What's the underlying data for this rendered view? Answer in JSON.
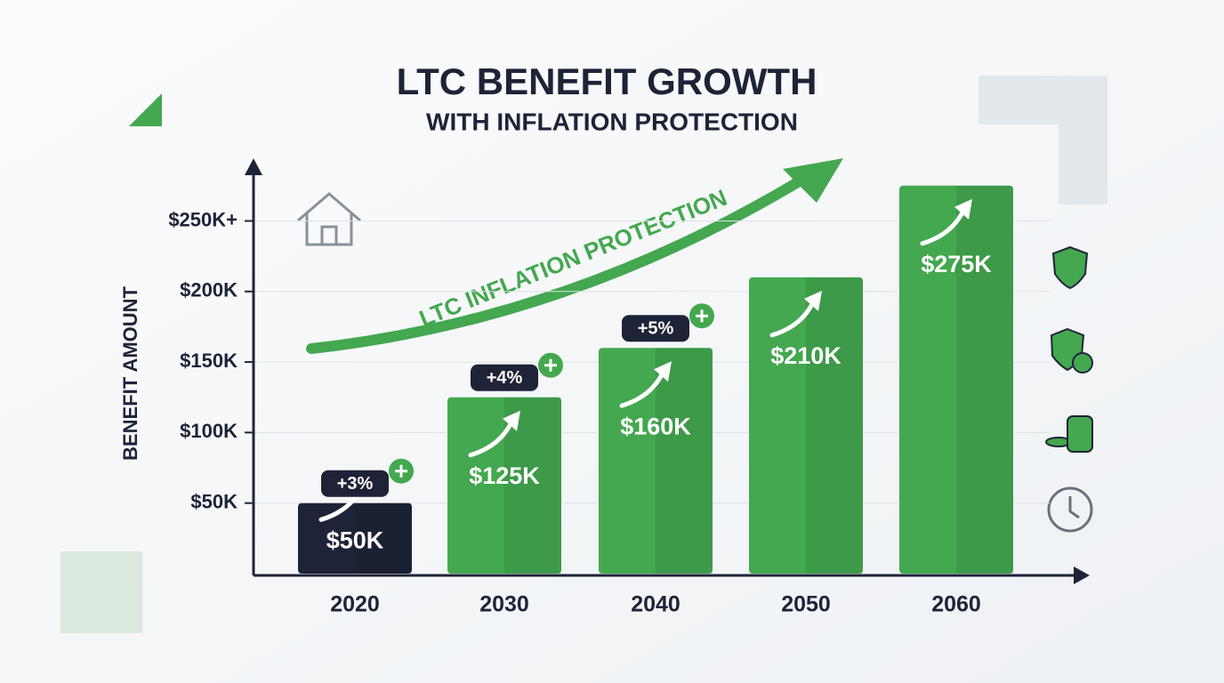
{
  "chart_data": {
    "type": "bar",
    "title": "LTC BENEFIT GROWTH",
    "subtitle": "WITH INFLATION PROTECTION",
    "y_label": "BENEFIT AMOUNT",
    "arrow_label": "LTC INFLATION PROTECTION",
    "categories": [
      "2020",
      "2030",
      "2040",
      "2050",
      "2060"
    ],
    "values": [
      50,
      125,
      160,
      210,
      275
    ],
    "value_labels": [
      "$50K",
      "$125K",
      "$160K",
      "$210K",
      "$275K"
    ],
    "colors": [
      "#1f2338",
      "#43a84f",
      "#43a84f",
      "#43a84f",
      "#43a84f"
    ],
    "change_labels": [
      "+3%",
      "+4%",
      "+5%"
    ],
    "ylim": [
      0,
      290
    ],
    "yticks": [
      {
        "value": 50,
        "label": "$50K"
      },
      {
        "value": 100,
        "label": "$100K"
      },
      {
        "value": 150,
        "label": "$150K"
      },
      {
        "value": 200,
        "label": "$200K"
      },
      {
        "value": 250,
        "label": "$250K+"
      }
    ]
  }
}
